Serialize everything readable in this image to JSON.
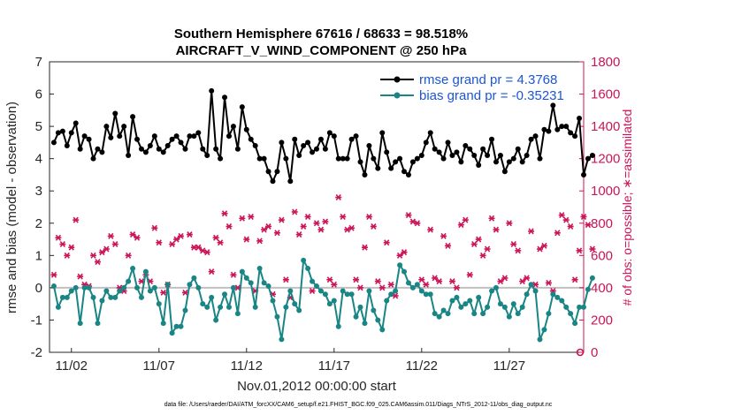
{
  "chart_data": {
    "type": "line",
    "title_line1": "Southern Hemisphere 67616 / 68633 = 98.518%",
    "title_line2": "AIRCRAFT_V_WIND_COMPONENT @ 250 hPa",
    "xlabel": "Nov.01,2012 00:00:00 start",
    "ylabel_left": "rmse and bias (model - observation)",
    "ylabel_right": "# of obs: o=possible; ∗=assimilated",
    "x_ticks": [
      "11/02",
      "11/07",
      "11/12",
      "11/17",
      "11/22",
      "11/27"
    ],
    "x_tick_days": [
      2,
      7,
      12,
      17,
      22,
      27
    ],
    "xlim_days": [
      0.75,
      31.25
    ],
    "ylim_left": [
      -2,
      7
    ],
    "yticks_left": [
      "-2",
      "-1",
      "0",
      "1",
      "2",
      "3",
      "4",
      "5",
      "6",
      "7"
    ],
    "ylim_right": [
      0,
      1800
    ],
    "yticks_right": [
      "0",
      "200",
      "400",
      "600",
      "800",
      "1000",
      "1200",
      "1400",
      "1600",
      "1800"
    ],
    "legend": [
      "rmse grand pr = 4.3768",
      "bias grand pr = -0.35231"
    ],
    "footer": "data file: /Users/raeder/DAI/ATM_forcXX/CAM6_setup/f.e21.FHIST_BGC.f09_025.CAM6assim.011/Diags_NTrS_2012-11/obs_diag_output.nc",
    "colors": {
      "rmse": "#000000",
      "bias": "#1a8585",
      "obs": "#cc1458",
      "zero_line": "#c0c0c0",
      "legend_text": "#1a56d6"
    },
    "series": [
      {
        "name": "rmse",
        "values": [
          4.5,
          4.8,
          4.85,
          4.4,
          4.8,
          5.1,
          4.3,
          4.7,
          4.6,
          4.0,
          4.3,
          4.2,
          5.0,
          4.65,
          5.4,
          4.7,
          5.0,
          4.1,
          5.3,
          4.6,
          4.3,
          4.2,
          4.4,
          4.7,
          4.3,
          4.2,
          4.4,
          4.6,
          4.7,
          4.5,
          4.3,
          4.7,
          4.7,
          4.8,
          4.3,
          4.1,
          6.1,
          4.3,
          4.0,
          5.9,
          4.7,
          5.0,
          4.3,
          5.6,
          4.9,
          4.6,
          4.4,
          4.0,
          4.0,
          3.6,
          3.3,
          3.6,
          4.5,
          4.0,
          3.3,
          4.6,
          4.1,
          4.4,
          4.5,
          4.2,
          4.3,
          4.6,
          4.3,
          4.8,
          4.7,
          4.0,
          4.0,
          4.0,
          4.6,
          4.7,
          3.9,
          3.5,
          4.4,
          4.0,
          3.7,
          4.8,
          4.2,
          3.7,
          3.9,
          4.0,
          3.6,
          3.5,
          3.9,
          4.0,
          4.1,
          4.5,
          4.8,
          4.3,
          4.2,
          4.0,
          4.5,
          4.1,
          4.2,
          3.9,
          4.4,
          4.3,
          4.1,
          3.8,
          4.3,
          4.1,
          4.6,
          3.9,
          4.1,
          3.6,
          3.9,
          4.0,
          4.3,
          3.9,
          4.1,
          4.6,
          4.7,
          4.0,
          4.9,
          4.85,
          5.65,
          4.9,
          5.0,
          5.0,
          4.8,
          4.7,
          5.25,
          3.5,
          4.0,
          4.1
        ],
        "y_axis": "left"
      },
      {
        "name": "bias",
        "values": [
          0.05,
          -0.6,
          -0.3,
          -0.3,
          -0.1,
          0.0,
          -1.1,
          0.0,
          0.0,
          -0.3,
          -1.1,
          -0.4,
          -0.1,
          -0.3,
          -0.3,
          -0.1,
          0.0,
          0.2,
          0.6,
          0.0,
          -0.3,
          0.5,
          -0.1,
          0.0,
          -0.5,
          -1.1,
          0.1,
          -1.4,
          -1.2,
          -1.2,
          -0.7,
          0.1,
          0.3,
          0.0,
          -0.5,
          -0.6,
          -0.3,
          -1.0,
          -0.6,
          -0.2,
          -0.6,
          0.0,
          -0.8,
          0.5,
          0.3,
          0.15,
          -0.6,
          0.6,
          0.15,
          0.05,
          -0.4,
          -0.9,
          -1.6,
          -0.6,
          -0.1,
          -0.5,
          -0.7,
          0.85,
          0.6,
          0.2,
          0.05,
          -0.1,
          -0.2,
          -0.5,
          -0.4,
          -1.2,
          -0.1,
          -0.2,
          -0.2,
          -0.9,
          -0.6,
          -1.1,
          -0.1,
          -0.7,
          -1.0,
          -1.3,
          -0.4,
          -0.2,
          -0.1,
          0.7,
          0.5,
          0.15,
          0.0,
          0.1,
          -0.1,
          -0.2,
          -0.2,
          -0.8,
          -0.9,
          -0.7,
          -0.8,
          -0.4,
          -0.3,
          -0.6,
          -0.5,
          -0.4,
          -0.8,
          -0.3,
          -0.8,
          -0.6,
          -0.1,
          0.0,
          -0.5,
          -0.6,
          -0.9,
          -0.5,
          -0.8,
          -0.6,
          -0.2,
          0.1,
          -0.1,
          -1.6,
          -1.3,
          -0.8,
          -0.2,
          -0.3,
          -0.4,
          -0.6,
          -0.8,
          -1.1,
          -0.6,
          -0.6,
          -0.05,
          0.3
        ],
        "y_axis": "left"
      },
      {
        "name": "obs",
        "values": [
          480,
          710,
          670,
          600,
          650,
          820,
          470,
          420,
          410,
          600,
          560,
          620,
          640,
          720,
          670,
          400,
          380,
          600,
          730,
          710,
          440,
          480,
          440,
          770,
          680,
          370,
          420,
          670,
          700,
          720,
          370,
          730,
          650,
          650,
          630,
          620,
          500,
          710,
          680,
          860,
          780,
          480,
          400,
          830,
          700,
          840,
          380,
          690,
          760,
          780,
          360,
          740,
          820,
          450,
          340,
          870,
          730,
          780,
          840,
          380,
          800,
          760,
          810,
          450,
          420,
          960,
          840,
          760,
          770,
          450,
          400,
          650,
          840,
          780,
          440,
          400,
          680,
          420,
          350,
          600,
          620,
          850,
          810,
          800,
          450,
          420,
          760,
          460,
          440,
          720,
          660,
          440,
          400,
          790,
          820,
          480,
          670,
          700,
          600,
          640,
          830,
          760,
          440,
          460,
          800,
          670,
          630,
          440,
          460,
          750,
          420,
          640,
          660,
          430,
          380,
          740,
          850,
          820,
          780,
          450,
          630,
          840,
          790,
          640
        ],
        "y_axis": "right"
      }
    ]
  }
}
